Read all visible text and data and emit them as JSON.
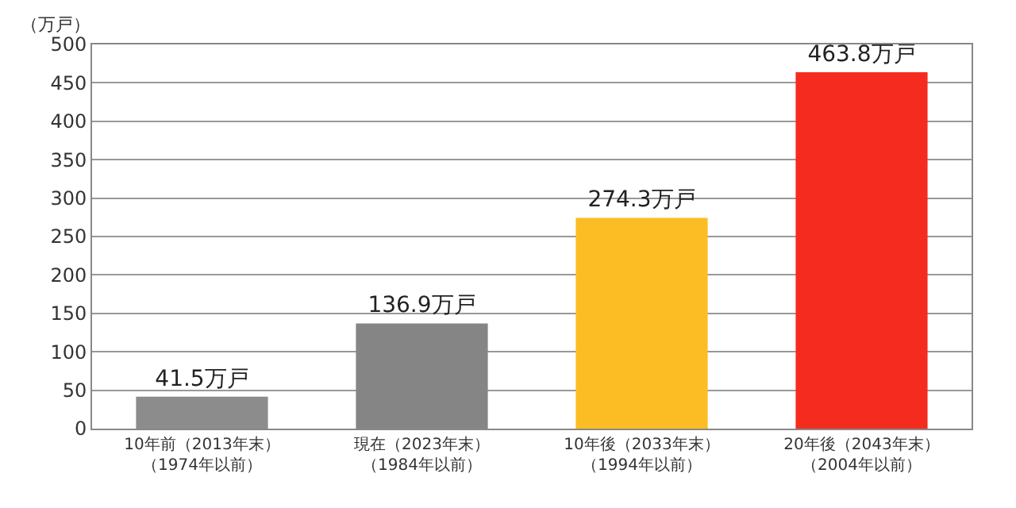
{
  "chart_data": {
    "type": "bar",
    "ylabel": "（万戸）",
    "categories": [
      "10年前（2013年末）（1974年以前）",
      "現在（2023年末）（1984年以前）",
      "10年後（2033年末）（1994年以前）",
      "20年後（2043年末）（2004年以前）"
    ],
    "values": [
      41.5,
      136.9,
      274.3,
      463.8
    ],
    "colors": [
      "#8c8c8c",
      "#858585",
      "#fbbd23",
      "#f52b20"
    ],
    "value_labels": [
      "41.5万戸",
      "136.9万戸",
      "274.3万戸",
      "463.8万戸"
    ],
    "ylim": [
      0,
      500
    ],
    "yticks": [
      0,
      50,
      100,
      150,
      200,
      250,
      300,
      350,
      400,
      450,
      500
    ],
    "grid": "y"
  }
}
